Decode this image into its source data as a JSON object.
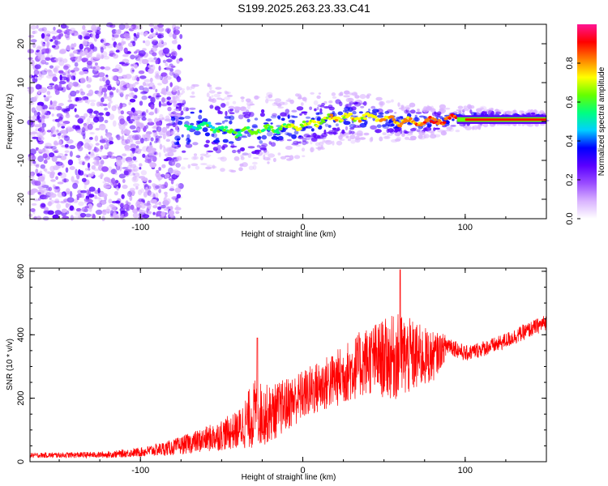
{
  "title": "S199.2025.263.23.33.C41",
  "chart_data": [
    {
      "type": "heatmap",
      "name": "spectrogram",
      "xlabel": "Height of straight line (km)",
      "ylabel": "Frequency (Hz)",
      "xlim": [
        -168,
        150
      ],
      "ylim": [
        -25,
        25
      ],
      "xticks": [
        -100,
        0,
        100
      ],
      "yticks": [
        -20,
        -10,
        0,
        10,
        20
      ],
      "colorbar": {
        "label": "Normalized spectral amplitude",
        "range": [
          0,
          1
        ],
        "ticks": [
          0.0,
          0.2,
          0.4,
          0.6,
          0.8
        ],
        "colors": [
          "#ffffff",
          "#d9b3ff",
          "#9a4dff",
          "#5a00ff",
          "#0000ff",
          "#00d0ff",
          "#00ff80",
          "#66ff00",
          "#ffff00",
          "#ff8000",
          "#ff0000",
          "#ff1493"
        ]
      },
      "ridge": {
        "description_points": [
          {
            "x": -75,
            "y": -2
          },
          {
            "x": -60,
            "y": -1
          },
          {
            "x": -40,
            "y": -3
          },
          {
            "x": -20,
            "y": -2
          },
          {
            "x": 0,
            "y": -1
          },
          {
            "x": 20,
            "y": 1
          },
          {
            "x": 40,
            "y": 1
          },
          {
            "x": 60,
            "y": 0
          },
          {
            "x": 80,
            "y": 0
          },
          {
            "x": 100,
            "y": 1
          },
          {
            "x": 150,
            "y": 1
          }
        ],
        "noise_region_end_x": -80
      }
    },
    {
      "type": "line",
      "name": "snr",
      "xlabel": "Height of straight line (km)",
      "ylabel": "SNR (10 * v/v)",
      "xlim": [
        -168,
        150
      ],
      "ylim": [
        0,
        610
      ],
      "xticks": [
        -100,
        0,
        100
      ],
      "yticks": [
        0,
        200,
        400,
        600
      ],
      "color": "#ff0000",
      "envelope": [
        {
          "x": -168,
          "mean": 20,
          "spread": 8
        },
        {
          "x": -120,
          "mean": 22,
          "spread": 10
        },
        {
          "x": -100,
          "mean": 30,
          "spread": 15
        },
        {
          "x": -80,
          "mean": 45,
          "spread": 25
        },
        {
          "x": -60,
          "mean": 70,
          "spread": 40
        },
        {
          "x": -40,
          "mean": 100,
          "spread": 60
        },
        {
          "x": -30,
          "mean": 150,
          "spread": 110
        },
        {
          "x": -20,
          "mean": 150,
          "spread": 90
        },
        {
          "x": 0,
          "mean": 210,
          "spread": 80
        },
        {
          "x": 20,
          "mean": 260,
          "spread": 90
        },
        {
          "x": 40,
          "mean": 320,
          "spread": 110
        },
        {
          "x": 60,
          "mean": 330,
          "spread": 140
        },
        {
          "x": 80,
          "mean": 330,
          "spread": 80
        },
        {
          "x": 90,
          "mean": 370,
          "spread": 30
        },
        {
          "x": 100,
          "mean": 340,
          "spread": 25
        },
        {
          "x": 120,
          "mean": 370,
          "spread": 25
        },
        {
          "x": 150,
          "mean": 440,
          "spread": 25
        }
      ],
      "peak": {
        "x": 60,
        "y": 605
      }
    }
  ]
}
